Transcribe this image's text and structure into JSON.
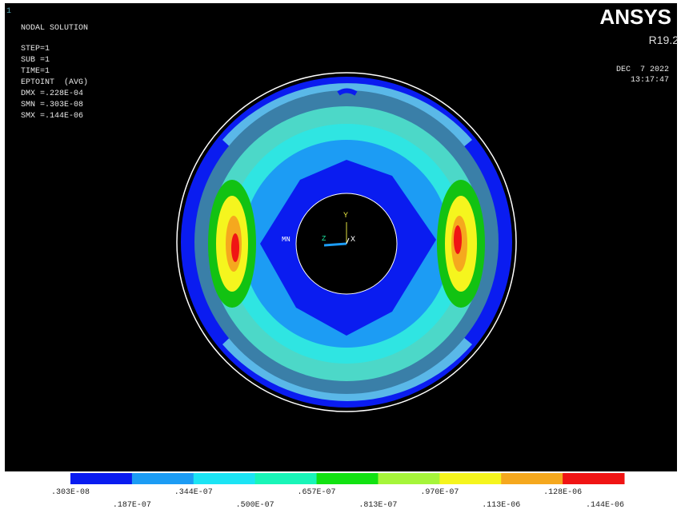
{
  "window_number": "1",
  "info": {
    "title": "NODAL SOLUTION",
    "lines": [
      "STEP=1",
      "SUB =1",
      "TIME=1",
      "EPTOINT  (AVG)",
      "DMX =.228E-04",
      "SMN =.303E-08",
      "SMX =.144E-06"
    ]
  },
  "logo": {
    "name": "ANSYS",
    "version": "R19.2"
  },
  "date": "DEC  7 2022",
  "time": "13:17:47",
  "triad": {
    "y": "Y",
    "x": "X",
    "z": "Z",
    "min_marker": "MN"
  },
  "legend": {
    "labels": [
      ".303E-08",
      ".187E-07",
      ".344E-07",
      ".500E-07",
      ".657E-07",
      ".813E-07",
      ".970E-07",
      ".113E-06",
      ".128E-06",
      ".144E-06"
    ],
    "colors": [
      "#0a1cf0",
      "#1c9cf4",
      "#1ce4f4",
      "#19f5b8",
      "#12e212",
      "#a6f53a",
      "#f5f51e",
      "#f5a81e",
      "#f01414"
    ]
  }
}
